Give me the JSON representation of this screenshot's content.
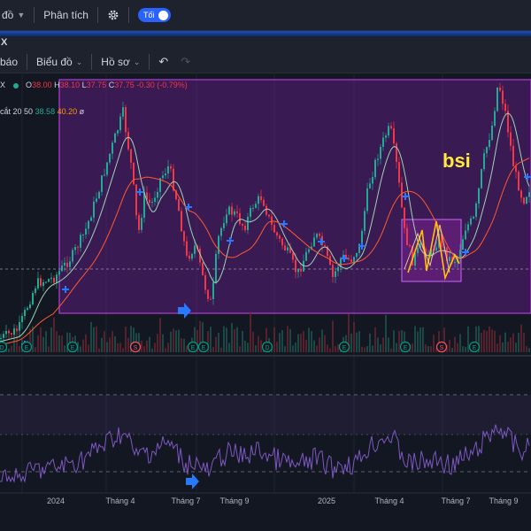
{
  "topbar": {
    "cut_label": "đồ",
    "analysis_label": "Phân tích",
    "toggle_label": "Tối"
  },
  "tab": {
    "close_glyph": "X"
  },
  "toolbar": {
    "alert_label": "báo",
    "chart_label": "Biểu đồ",
    "profile_label": "Hồ sơ"
  },
  "ohlc": {
    "ticker_glyph": "X",
    "o_label": "O",
    "o": "38.00",
    "h_label": "H",
    "h": "38.10",
    "l_label": "L",
    "l": "37.75",
    "c_label": "C",
    "c": "37.75",
    "change": "-0.30 (-0.79%)"
  },
  "ma": {
    "label": "cắt 20 50",
    "v1": "38.58",
    "v2": "40.20",
    "flag": "ø"
  },
  "annotation": {
    "text": "bsi"
  },
  "event_markers": [
    {
      "letter": "D",
      "color": "#089981"
    },
    {
      "letter": "E",
      "color": "#089981"
    },
    {
      "letter": "E",
      "color": "#089981"
    },
    {
      "letter": "S",
      "color": "#f7525f"
    },
    {
      "letter": "E",
      "color": "#089981"
    },
    {
      "letter": "E",
      "color": "#089981"
    },
    {
      "letter": "D",
      "color": "#089981"
    },
    {
      "letter": "E",
      "color": "#089981"
    },
    {
      "letter": "E",
      "color": "#089981"
    },
    {
      "letter": "S",
      "color": "#f7525f"
    },
    {
      "letter": "E",
      "color": "#089981"
    }
  ],
  "x_axis": [
    "2024",
    "Tháng 4",
    "Tháng 7",
    "Tháng 9",
    "2025",
    "Tháng 4",
    "Tháng 7",
    "Tháng 9"
  ],
  "colors": {
    "up": "#22ab94",
    "down": "#f23645",
    "ma_fast": "#9ed3b5",
    "ma_slow": "#ff5a2e",
    "rsi": "#7e57c2",
    "zone_fill": "#7b1fa2",
    "zone_border": "#b43cd8",
    "signal": "#2979ff",
    "annotation": "#ffeb3b"
  }
}
